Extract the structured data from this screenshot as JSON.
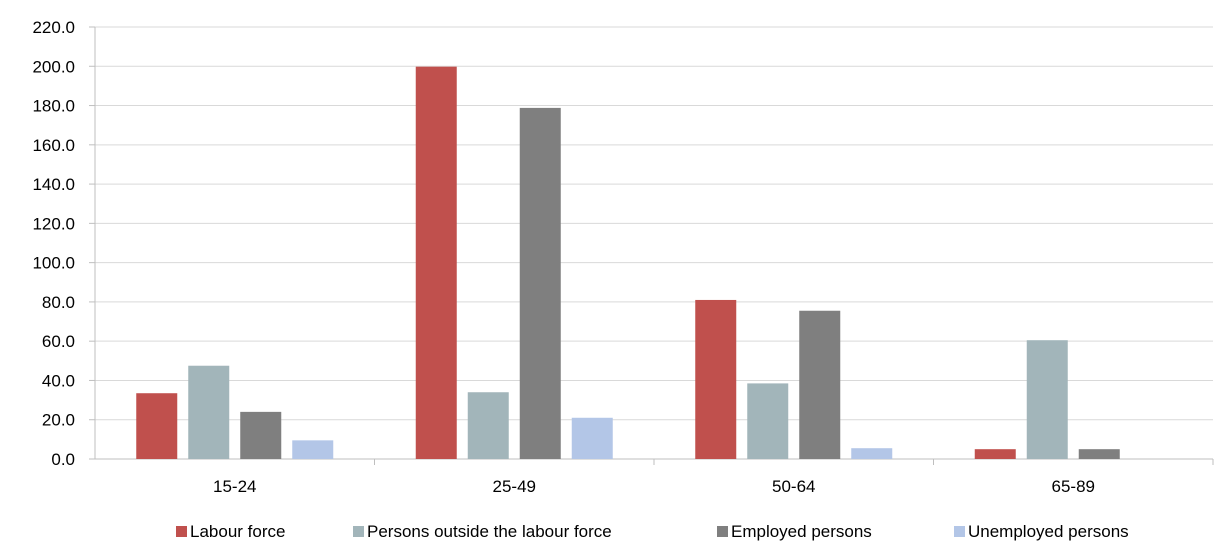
{
  "chart_data": {
    "type": "bar",
    "categories": [
      "15-24",
      "25-49",
      "50-64",
      "65-89"
    ],
    "series": [
      {
        "name": "Labour force",
        "color": "#c0504d",
        "values": [
          33.5,
          199.8,
          81.0,
          5.0
        ]
      },
      {
        "name": "Persons outside the labour force",
        "color": "#a2b5ba",
        "values": [
          47.5,
          34.0,
          38.5,
          60.5
        ]
      },
      {
        "name": "Employed persons",
        "color": "#7f7f7f",
        "values": [
          24.0,
          178.8,
          75.5,
          5.0
        ]
      },
      {
        "name": "Unemployed persons",
        "color": "#b3c6e7",
        "values": [
          9.5,
          21.0,
          5.5,
          null
        ]
      }
    ],
    "ylim": [
      0,
      220
    ],
    "yticks": [
      "0.0",
      "20.0",
      "40.0",
      "60.0",
      "80.0",
      "100.0",
      "120.0",
      "140.0",
      "160.0",
      "180.0",
      "200.0",
      "220.0"
    ],
    "ytick_values": [
      0,
      20,
      40,
      60,
      80,
      100,
      120,
      140,
      160,
      180,
      200,
      220
    ],
    "grid": true,
    "legend_position": "bottom",
    "title": "",
    "xlabel": "",
    "ylabel": ""
  }
}
